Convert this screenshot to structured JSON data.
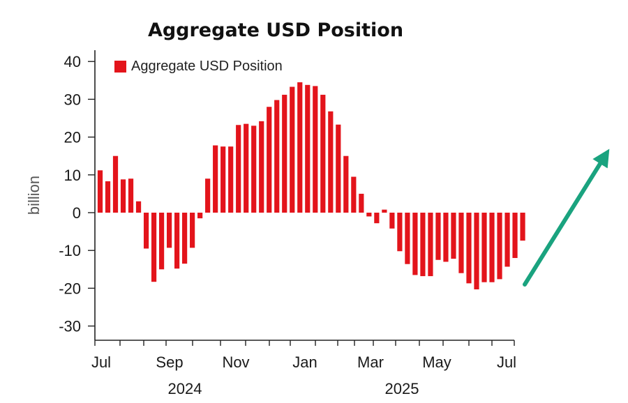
{
  "chart_data": {
    "type": "bar",
    "title": "Aggregate USD Position",
    "xlabel": "",
    "ylabel": "billion",
    "ylim": [
      -34,
      44
    ],
    "yticks": [
      40,
      30,
      20,
      10,
      0,
      -10,
      -20,
      -30
    ],
    "ytick_labels": [
      "40",
      "30",
      "20",
      "10",
      "0",
      "-10",
      "-20",
      "-30"
    ],
    "xtick_labels": [
      "Jul",
      "Sep",
      "Nov",
      "Jan",
      "Mar",
      "May",
      "Jul"
    ],
    "year_labels": [
      "2024",
      "2025"
    ],
    "legend": {
      "label": "Aggregate USD Position",
      "position": "top-left"
    },
    "grid": false,
    "series": [
      {
        "name": "Aggregate USD Position",
        "color": "#e3141b",
        "values": [
          11.2,
          8.3,
          15,
          8.8,
          9,
          3,
          -9.5,
          -18.3,
          -15,
          -9.3,
          -14.8,
          -13.5,
          -9.3,
          -1.5,
          9,
          17.8,
          17.5,
          17.5,
          23.2,
          23.5,
          23,
          24.2,
          28,
          29.8,
          31.2,
          33.3,
          34.5,
          33.8,
          33.5,
          31.2,
          26.8,
          23.3,
          15,
          9.5,
          5,
          -1,
          -2.8,
          0.8,
          -4.2,
          -10.2,
          -13.6,
          -16.5,
          -16.8,
          -16.8,
          -12.5,
          -13,
          -12.2,
          -16,
          -18.7,
          -20.3,
          -18.4,
          -18.4,
          -17.6,
          -14.3,
          -12,
          -7.4
        ]
      }
    ],
    "arrow_color": "#1aa37f"
  }
}
